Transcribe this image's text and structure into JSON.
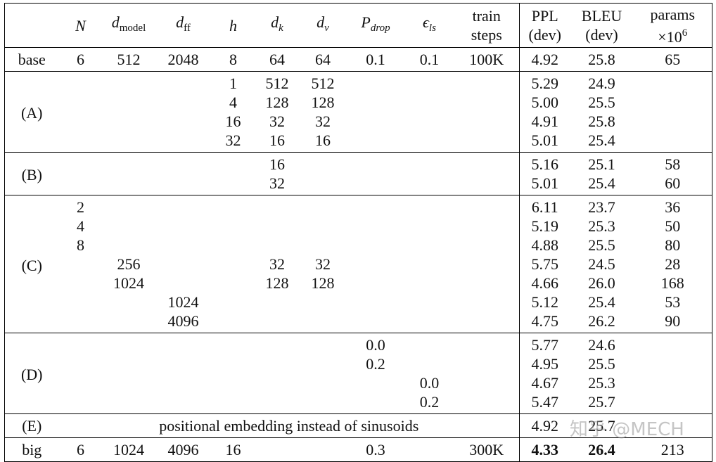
{
  "table": {
    "header": [
      {
        "text": "N",
        "math": true
      },
      {
        "text": "d",
        "sub": "model",
        "math": true
      },
      {
        "text": "d",
        "sub": "ff",
        "math": true
      },
      {
        "text": "h",
        "math": true
      },
      {
        "text": "d",
        "sub": "k",
        "math": true,
        "subMath": true
      },
      {
        "text": "d",
        "sub": "v",
        "math": true,
        "subMath": true
      },
      {
        "text": "P",
        "sub": "drop",
        "math": true,
        "subMath": true
      },
      {
        "text": "ϵ",
        "sub": "ls",
        "math": true,
        "subMath": true
      },
      {
        "text": "train",
        "line2": "steps"
      },
      {
        "text": "PPL",
        "line2": "(dev)"
      },
      {
        "text": "BLEU",
        "line2": "(dev)"
      },
      {
        "text": "params",
        "line2": "×10",
        "sup": "6"
      }
    ],
    "groups": [
      {
        "label": "base",
        "rows": [
          [
            "6",
            "512",
            "2048",
            "8",
            "64",
            "64",
            "0.1",
            "0.1",
            "100K",
            "4.92",
            "25.8",
            "65"
          ]
        ]
      },
      {
        "label": "(A)",
        "rows": [
          [
            null,
            null,
            null,
            "1",
            "512",
            "512",
            null,
            null,
            null,
            "5.29",
            "24.9",
            null
          ],
          [
            null,
            null,
            null,
            "4",
            "128",
            "128",
            null,
            null,
            null,
            "5.00",
            "25.5",
            null
          ],
          [
            null,
            null,
            null,
            "16",
            "32",
            "32",
            null,
            null,
            null,
            "4.91",
            "25.8",
            null
          ],
          [
            null,
            null,
            null,
            "32",
            "16",
            "16",
            null,
            null,
            null,
            "5.01",
            "25.4",
            null
          ]
        ]
      },
      {
        "label": "(B)",
        "rows": [
          [
            null,
            null,
            null,
            null,
            "16",
            null,
            null,
            null,
            null,
            "5.16",
            "25.1",
            "58"
          ],
          [
            null,
            null,
            null,
            null,
            "32",
            null,
            null,
            null,
            null,
            "5.01",
            "25.4",
            "60"
          ]
        ]
      },
      {
        "label": "(C)",
        "rows": [
          [
            "2",
            null,
            null,
            null,
            null,
            null,
            null,
            null,
            null,
            "6.11",
            "23.7",
            "36"
          ],
          [
            "4",
            null,
            null,
            null,
            null,
            null,
            null,
            null,
            null,
            "5.19",
            "25.3",
            "50"
          ],
          [
            "8",
            null,
            null,
            null,
            null,
            null,
            null,
            null,
            null,
            "4.88",
            "25.5",
            "80"
          ],
          [
            null,
            "256",
            null,
            null,
            "32",
            "32",
            null,
            null,
            null,
            "5.75",
            "24.5",
            "28"
          ],
          [
            null,
            "1024",
            null,
            null,
            "128",
            "128",
            null,
            null,
            null,
            "4.66",
            "26.0",
            "168"
          ],
          [
            null,
            null,
            "1024",
            null,
            null,
            null,
            null,
            null,
            null,
            "5.12",
            "25.4",
            "53"
          ],
          [
            null,
            null,
            "4096",
            null,
            null,
            null,
            null,
            null,
            null,
            "4.75",
            "26.2",
            "90"
          ]
        ]
      },
      {
        "label": "(D)",
        "rows": [
          [
            null,
            null,
            null,
            null,
            null,
            null,
            "0.0",
            null,
            null,
            "5.77",
            "24.6",
            null
          ],
          [
            null,
            null,
            null,
            null,
            null,
            null,
            "0.2",
            null,
            null,
            "4.95",
            "25.5",
            null
          ],
          [
            null,
            null,
            null,
            null,
            null,
            null,
            null,
            "0.0",
            null,
            "4.67",
            "25.3",
            null
          ],
          [
            null,
            null,
            null,
            null,
            null,
            null,
            null,
            "0.2",
            null,
            "5.47",
            "25.7",
            null
          ]
        ]
      },
      {
        "label": "(E)",
        "note": "positional embedding instead of sinusoids",
        "rows": [
          [
            null,
            null,
            null,
            null,
            null,
            null,
            null,
            null,
            null,
            "4.92",
            "25.7",
            null
          ]
        ]
      },
      {
        "label": "big",
        "bold": [
          9,
          10
        ],
        "rows": [
          [
            "6",
            "1024",
            "4096",
            "16",
            null,
            null,
            "0.3",
            null,
            "300K",
            "4.33",
            "26.4",
            "213"
          ]
        ]
      }
    ],
    "watermark": "知乎 @MECH"
  }
}
